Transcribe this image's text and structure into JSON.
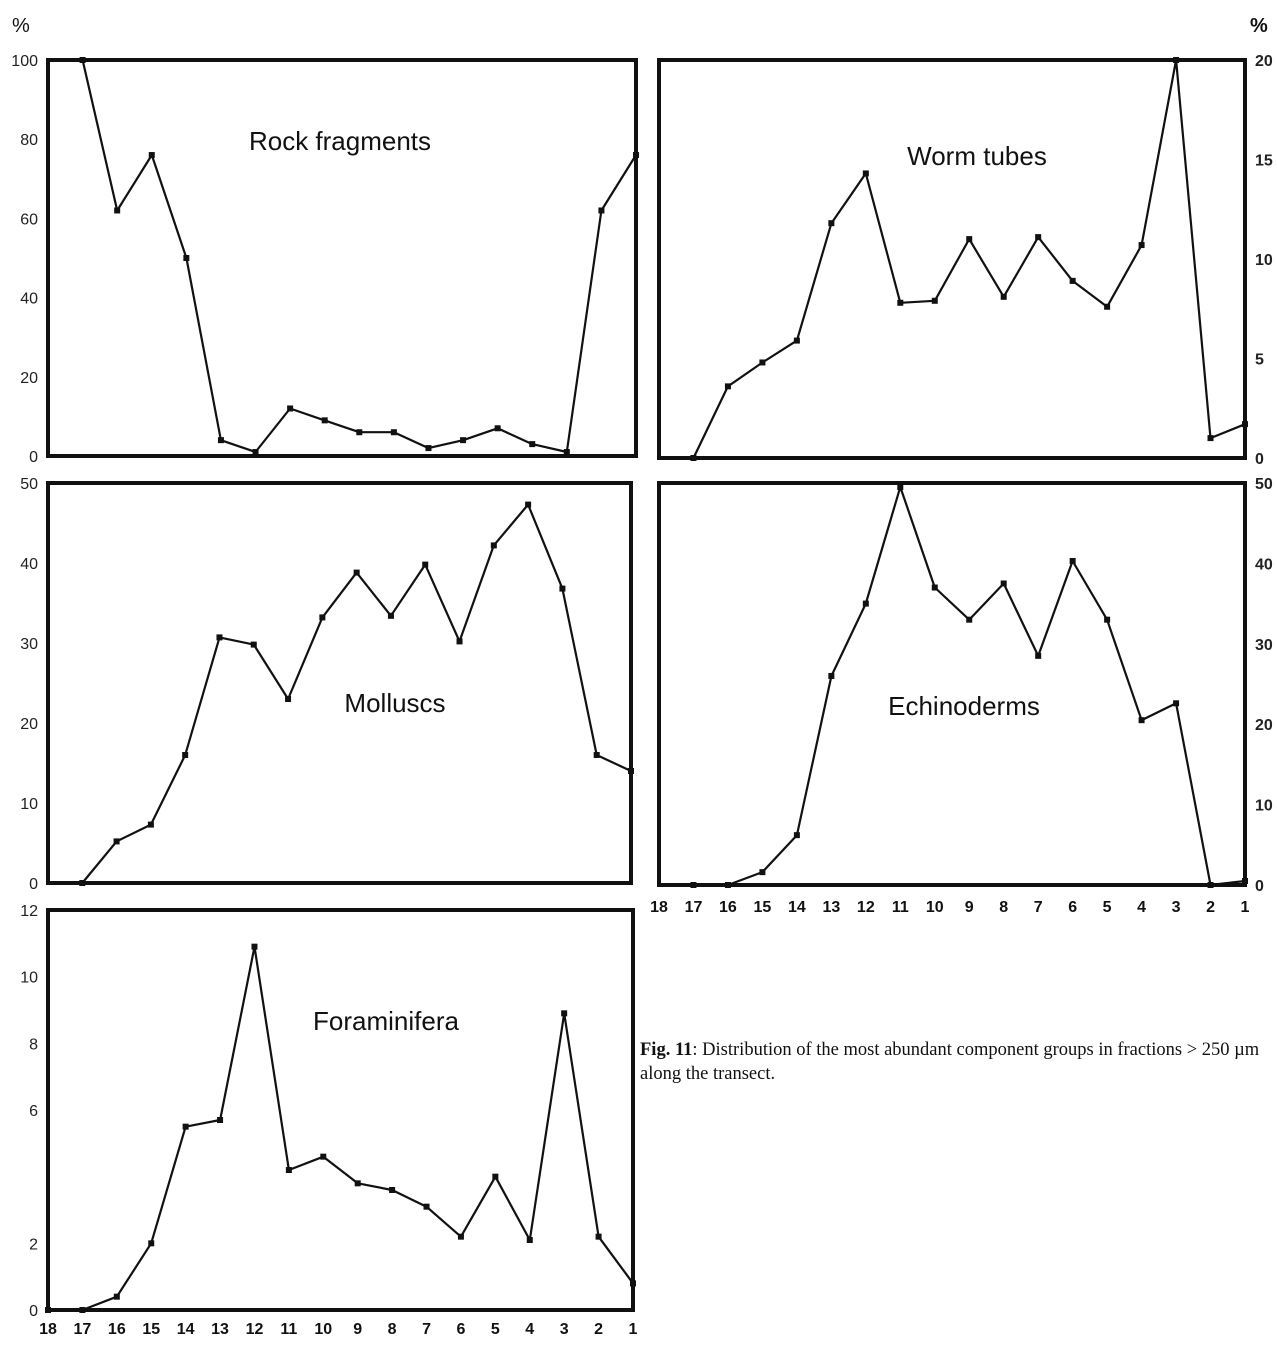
{
  "figure": {
    "caption_label": "Fig. 11",
    "caption_text": ": Distribution of the most abundant component groups in fractions > 250 µm along the transect.",
    "unit_left": "%",
    "unit_right": "%",
    "line_color": "#111111",
    "marker_color": "#111111"
  },
  "chart_data": [
    {
      "type": "line",
      "title": "Rock fragments",
      "xlabel": "",
      "ylabel": "%",
      "x": [
        18,
        17,
        16,
        15,
        14,
        13,
        12,
        11,
        10,
        9,
        8,
        7,
        6,
        5,
        4,
        3,
        2,
        1
      ],
      "ylim": [
        0,
        100
      ],
      "yticks": [
        0,
        20,
        40,
        60,
        80,
        100
      ],
      "axis_side": "left",
      "series": [
        {
          "values": [
            null,
            100,
            62,
            76,
            50,
            4,
            1,
            12,
            9,
            6,
            6,
            2,
            4,
            7,
            3,
            1,
            62,
            76
          ]
        }
      ]
    },
    {
      "type": "line",
      "title": "Worm tubes",
      "xlabel": "",
      "ylabel": "%",
      "x": [
        18,
        17,
        16,
        15,
        14,
        13,
        12,
        11,
        10,
        9,
        8,
        7,
        6,
        5,
        4,
        3,
        2,
        1
      ],
      "ylim": [
        0,
        20
      ],
      "yticks": [
        0,
        5,
        10,
        15,
        20
      ],
      "axis_side": "right",
      "series": [
        {
          "values": [
            null,
            0,
            3.6,
            4.8,
            5.9,
            11.8,
            14.3,
            7.8,
            7.9,
            11,
            8.1,
            11.1,
            8.9,
            7.6,
            10.7,
            20,
            1,
            1.7
          ]
        }
      ]
    },
    {
      "type": "line",
      "title": "Molluscs",
      "xlabel": "",
      "ylabel": "%",
      "x": [
        18,
        17,
        16,
        15,
        14,
        13,
        12,
        11,
        10,
        9,
        8,
        7,
        6,
        5,
        4,
        3,
        2,
        1
      ],
      "ylim": [
        0,
        50
      ],
      "yticks": [
        0,
        10,
        20,
        30,
        40,
        50
      ],
      "axis_side": "left",
      "series": [
        {
          "values": [
            null,
            0,
            5.2,
            7.3,
            16,
            30.7,
            29.8,
            23,
            33.2,
            38.8,
            33.4,
            39.8,
            30.2,
            42.2,
            47.3,
            36.8,
            16,
            14
          ]
        }
      ]
    },
    {
      "type": "line",
      "title": "Echinoderms",
      "xlabel": "",
      "ylabel": "%",
      "x": [
        18,
        17,
        16,
        15,
        14,
        13,
        12,
        11,
        10,
        9,
        8,
        7,
        6,
        5,
        4,
        3,
        2,
        1
      ],
      "xticks": [
        "18",
        "17",
        "16",
        "15",
        "14",
        "13",
        "12",
        "11",
        "10",
        "9",
        "8",
        "7",
        "6",
        "5",
        "4",
        "3",
        "2",
        "1"
      ],
      "ylim": [
        0,
        50
      ],
      "yticks": [
        0,
        10,
        20,
        30,
        40,
        50
      ],
      "axis_side": "right",
      "series": [
        {
          "values": [
            null,
            0,
            0,
            1.6,
            6.2,
            26,
            35,
            49.5,
            37,
            33,
            37.5,
            28.5,
            40.3,
            33,
            20.5,
            22.6,
            0,
            0.5
          ]
        }
      ]
    },
    {
      "type": "line",
      "title": "Foraminifera",
      "xlabel": "",
      "ylabel": "%",
      "x": [
        18,
        17,
        16,
        15,
        14,
        13,
        12,
        11,
        10,
        9,
        8,
        7,
        6,
        5,
        4,
        3,
        2,
        1
      ],
      "xticks": [
        "18",
        "17",
        "16",
        "15",
        "14",
        "13",
        "12",
        "11",
        "10",
        "9",
        "8",
        "7",
        "6",
        "5",
        "4",
        "3",
        "2",
        "1"
      ],
      "ylim": [
        0,
        12
      ],
      "yticks": [
        0,
        2,
        6,
        8,
        10,
        12
      ],
      "axis_side": "left",
      "series": [
        {
          "values": [
            0,
            0,
            0.4,
            2,
            5.5,
            5.7,
            10.9,
            4.2,
            4.6,
            3.8,
            3.6,
            3.1,
            2.2,
            4,
            2.1,
            8.9,
            2.2,
            0.8
          ]
        }
      ]
    }
  ]
}
